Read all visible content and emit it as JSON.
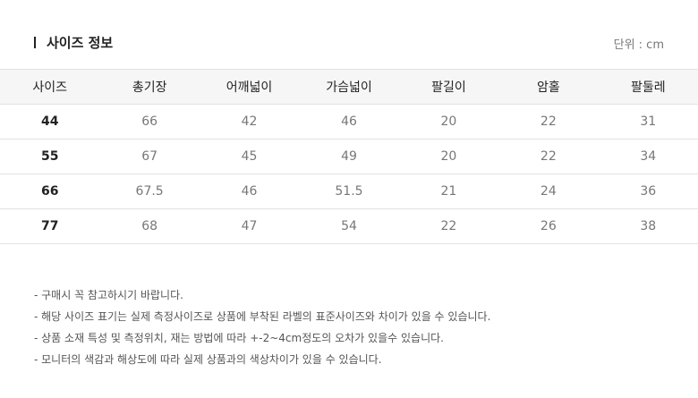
{
  "title": "사이즈 정보",
  "unit": "단위 : cm",
  "table": {
    "headers": [
      "사이즈",
      "총기장",
      "어깨넓이",
      "가슴넓이",
      "팔길이",
      "암홀",
      "팔둘레"
    ],
    "rows": [
      [
        "44",
        "66",
        "42",
        "46",
        "20",
        "22",
        "31"
      ],
      [
        "55",
        "67",
        "45",
        "49",
        "20",
        "22",
        "34"
      ],
      [
        "66",
        "67.5",
        "46",
        "51.5",
        "21",
        "24",
        "36"
      ],
      [
        "77",
        "68",
        "47",
        "54",
        "22",
        "26",
        "38"
      ]
    ]
  },
  "notes": [
    "- 구매시 꼭 참고하시기 바랍니다.",
    "- 해당 사이즈 표기는 실제 측정사이즈로 상품에 부착된 라벨의 표준사이즈와 차이가 있을 수 있습니다.",
    "- 상품 소재 특성 및 측정위치, 재는 방법에 따라 +-2~4cm정도의 오차가 있을수 있습니다.",
    "- 모니터의 색감과 해상도에 따라 실제 상품과의 색상차이가 있을 수 있습니다."
  ]
}
